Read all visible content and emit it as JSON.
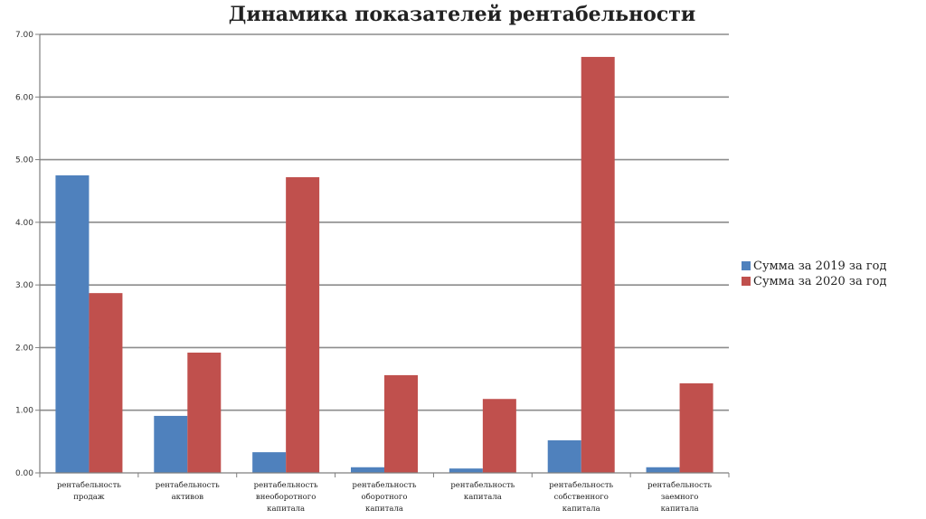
{
  "chart_data": {
    "type": "bar",
    "title": "Динамика показателей рентабельности",
    "xlabel": "",
    "ylabel": "",
    "ylim": [
      0,
      7
    ],
    "yticks": [
      "0.00",
      "1.00",
      "2.00",
      "3.00",
      "4.00",
      "5.00",
      "6.00",
      "7.00"
    ],
    "grid": true,
    "legend_position": "right",
    "categories": [
      [
        "рентабельность",
        "продаж"
      ],
      [
        "рентабельность",
        "активов"
      ],
      [
        "рентабельность",
        "внеоборотного",
        "капитала"
      ],
      [
        "рентабельность",
        "оборотного",
        "капитала"
      ],
      [
        "рентабельность",
        "капитала"
      ],
      [
        "рентабельность",
        "собственного",
        "капитала"
      ],
      [
        "рентабельность",
        "заемного",
        "капитала"
      ]
    ],
    "series": [
      {
        "name": "Сумма за 2019 за год",
        "color": "#4f81bd",
        "values": [
          4.75,
          0.91,
          0.33,
          0.09,
          0.07,
          0.52,
          0.09
        ]
      },
      {
        "name": "Сумма за 2020 за год",
        "color": "#c0504d",
        "values": [
          2.87,
          1.92,
          4.72,
          1.56,
          1.18,
          6.64,
          1.43
        ]
      }
    ]
  }
}
